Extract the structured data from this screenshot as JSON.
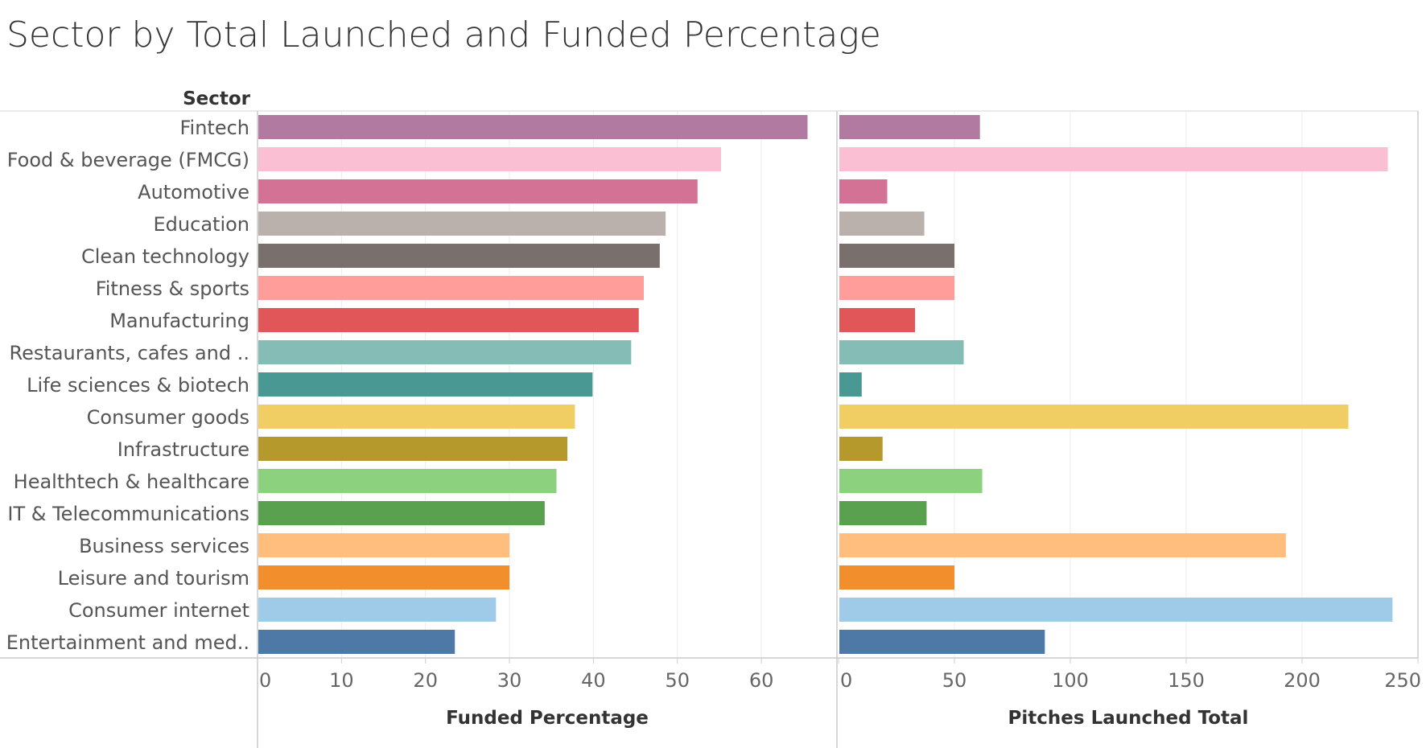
{
  "chart_data": {
    "type": "bar",
    "title": "Sector by Total Launched and Funded Percentage",
    "row_header": "Sector",
    "categories": [
      "Fintech",
      "Food & beverage (FMCG)",
      "Automotive",
      "Education",
      "Clean technology",
      "Fitness & sports",
      "Manufacturing",
      "Restaurants, cafes and ..",
      "Life sciences & biotech",
      "Consumer goods",
      "Infrastructure",
      "Healthtech & healthcare",
      "IT & Telecommunications",
      "Business services",
      "Leisure and tourism",
      "Consumer internet",
      "Entertainment and med.."
    ],
    "colors": [
      "#b07aa1",
      "#fabfd2",
      "#d37295",
      "#bab0ac",
      "#79706e",
      "#ff9d9a",
      "#e15759",
      "#86bcb6",
      "#499894",
      "#f1ce63",
      "#b6992d",
      "#8cd17d",
      "#59a14f",
      "#ffbe7d",
      "#f28e2b",
      "#a0cbe8",
      "#4e79a7"
    ],
    "series": [
      {
        "name": "Funded Percentage",
        "xlabel": "Funded Percentage",
        "xlim": [
          0,
          69
        ],
        "ticks": [
          0,
          10,
          20,
          30,
          40,
          50,
          60
        ],
        "values": [
          65.5,
          55.2,
          52.4,
          48.6,
          47.9,
          46.0,
          45.4,
          44.5,
          39.9,
          37.8,
          36.9,
          35.6,
          34.2,
          30.0,
          30.0,
          28.4,
          23.5
        ]
      },
      {
        "name": "Pitches Launched Total",
        "xlabel": "Pitches Launched Total",
        "xlim": [
          0,
          250
        ],
        "ticks": [
          0,
          50,
          100,
          150,
          200,
          250
        ],
        "values": [
          61,
          237,
          21,
          37,
          50,
          50,
          33,
          54,
          10,
          220,
          19,
          62,
          38,
          193,
          50,
          239,
          89
        ]
      }
    ]
  }
}
